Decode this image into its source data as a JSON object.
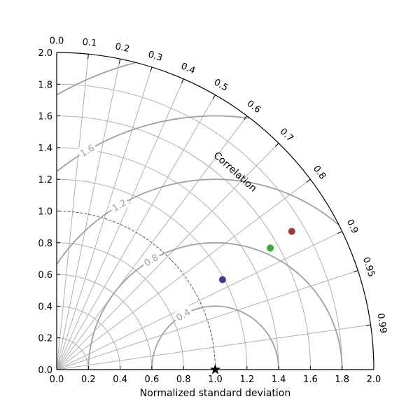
{
  "chart_data": {
    "type": "scatter",
    "subtype": "taylor-diagram",
    "title": "",
    "xlabel": "Normalized standard deviation",
    "angular_label": "Correlation",
    "std_range": [
      0,
      2.0
    ],
    "std_ticks": [
      "0.0",
      "0.2",
      "0.4",
      "0.6",
      "0.8",
      "1.0",
      "1.2",
      "1.4",
      "1.6",
      "1.8",
      "2.0"
    ],
    "correlation_ticks": [
      "0.0",
      "0.1",
      "0.2",
      "0.3",
      "0.4",
      "0.5",
      "0.6",
      "0.7",
      "0.8",
      "0.9",
      "0.95",
      "0.99"
    ],
    "rms_contours": [
      "0.4",
      "0.8",
      "1.2",
      "1.6",
      "2.0"
    ],
    "std_arcs": [
      0.2,
      0.4,
      0.6,
      0.8,
      1.0,
      1.2,
      1.4,
      1.6,
      1.8
    ],
    "reference_point": {
      "std": 1.0,
      "correlation": 1.0,
      "marker": "star",
      "color": "#000000"
    },
    "points": [
      {
        "std": 1.19,
        "correlation": 0.879,
        "color": "#3a3a9a"
      },
      {
        "std": 1.55,
        "correlation": 0.869,
        "color": "#3aaa3a"
      },
      {
        "std": 1.72,
        "correlation": 0.862,
        "color": "#a03a3a"
      }
    ],
    "grid": true,
    "colors": {
      "grid": "#b0b0b0",
      "rms": "#a0a0a0",
      "frame": "#000000"
    }
  }
}
